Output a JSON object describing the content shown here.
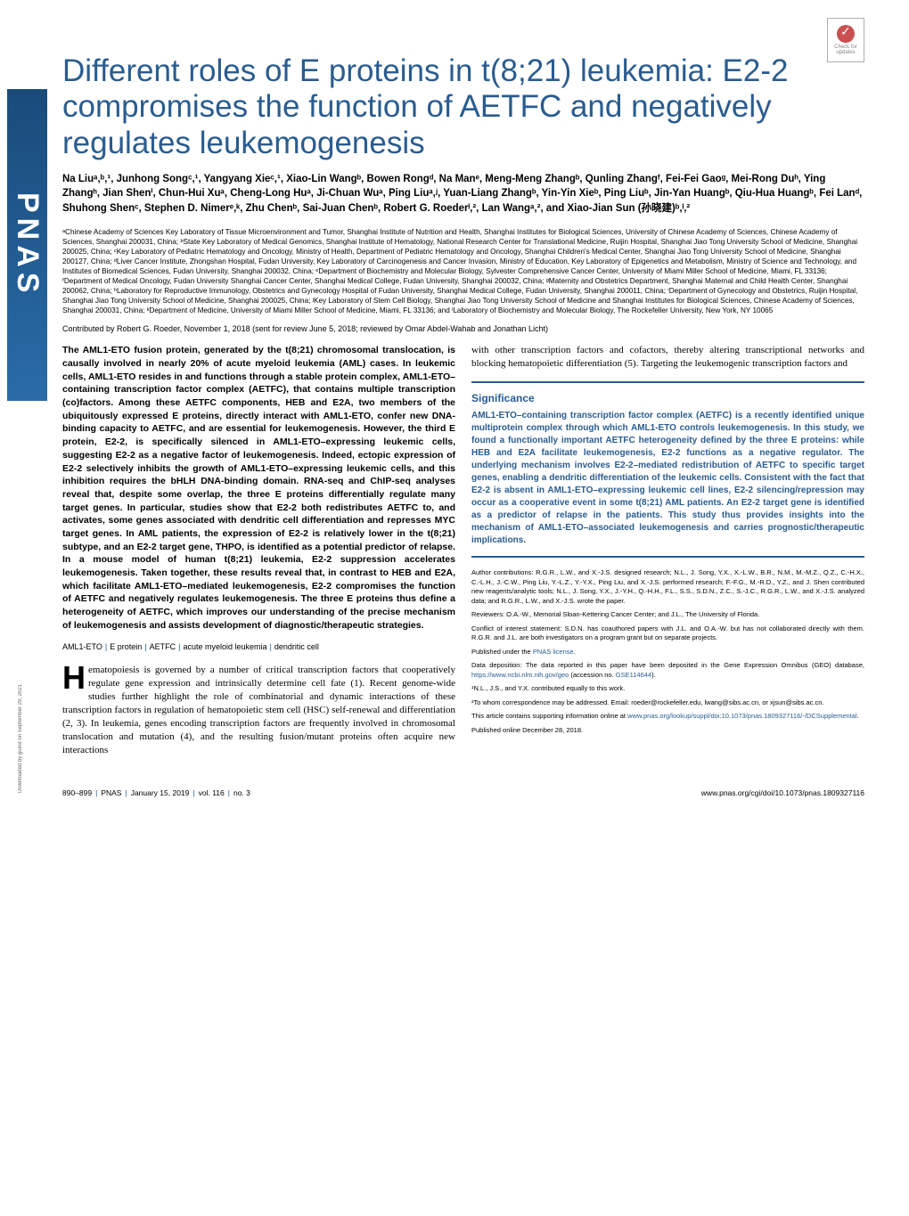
{
  "colors": {
    "accent": "#2a5c8f",
    "text": "#000000",
    "background": "#ffffff",
    "logo_grad_start": "#1a4b7a",
    "logo_grad_end": "#2a6ba8",
    "check_circle": "#c85050"
  },
  "typography": {
    "title_fontsize": 35,
    "author_fontsize": 11.5,
    "affil_fontsize": 8.2,
    "abstract_fontsize": 10.5,
    "body_fontsize": 11,
    "meta_fontsize": 7.5,
    "footer_fontsize": 8.5
  },
  "check_updates": {
    "line1": "Check for",
    "line2": "updates"
  },
  "side_logo": "PNAS",
  "title": "Different roles of E proteins in t(8;21) leukemia: E2-2 compromises the function of AETFC and negatively regulates leukemogenesis",
  "authors": "Na Liuᵃ,ᵇ,¹, Junhong Songᶜ,¹, Yangyang Xieᶜ,¹, Xiao-Lin Wangᵇ, Bowen Rongᵈ, Na Manᵉ, Meng-Meng Zhangᵇ, Qunling Zhangᶠ, Fei-Fei Gaoᵍ, Mei-Rong Duʰ, Ying Zhangʰ, Jian Shenⁱ, Chun-Hui Xuᵃ, Cheng-Long Huᵃ, Ji-Chuan Wuᵃ, Ping Liuᵃ,ʲ, Yuan-Liang Zhangᵇ, Yin-Yin Xieᵇ, Ping Liuᵇ, Jin-Yan Huangᵇ, Qiu-Hua Huangᵇ, Fei Lanᵈ, Shuhong Shenᶜ, Stephen D. Nimerᵉ,ᵏ, Zhu Chenᵇ, Sai-Juan Chenᵇ, Robert G. Roederˡ,², Lan Wangᵃ,², and Xiao-Jian Sun (孙晓建)ᵇ,ˡ,²",
  "affiliations": "ᵃChinese Academy of Sciences Key Laboratory of Tissue Microenvironment and Tumor, Shanghai Institute of Nutrition and Health, Shanghai Institutes for Biological Sciences, University of Chinese Academy of Sciences, Chinese Academy of Sciences, Shanghai 200031, China; ᵇState Key Laboratory of Medical Genomics, Shanghai Institute of Hematology, National Research Center for Translational Medicine, Ruijin Hospital, Shanghai Jiao Tong University School of Medicine, Shanghai 200025, China; ᶜKey Laboratory of Pediatric Hematology and Oncology, Ministry of Health, Department of Pediatric Hematology and Oncology, Shanghai Children's Medical Center, Shanghai Jiao Tong University School of Medicine, Shanghai 200127, China; ᵈLiver Cancer Institute, Zhongshan Hospital, Fudan University, Key Laboratory of Carcinogenesis and Cancer Invasion, Ministry of Education, Key Laboratory of Epigenetics and Metabolism, Ministry of Science and Technology, and Institutes of Biomedical Sciences, Fudan University, Shanghai 200032, China; ᵉDepartment of Biochemistry and Molecular Biology, Sylvester Comprehensive Cancer Center, University of Miami Miller School of Medicine, Miami, FL 33136; ᶠDepartment of Medical Oncology, Fudan University Shanghai Cancer Center, Shanghai Medical College, Fudan University, Shanghai 200032, China; ᵍMaternity and Obstetrics Department, Shanghai Maternal and Child Health Center, Shanghai 200062, China; ʰLaboratory for Reproductive Immunology, Obstetrics and Gynecology Hospital of Fudan University, Shanghai Medical College, Fudan University, Shanghai 200011, China; ⁱDepartment of Gynecology and Obstetrics, Ruijin Hospital, Shanghai Jiao Tong University School of Medicine, Shanghai 200025, China; ʲKey Laboratory of Stem Cell Biology, Shanghai Jiao Tong University School of Medicine and Shanghai Institutes for Biological Sciences, Chinese Academy of Sciences, Shanghai 200031, China; ᵏDepartment of Medicine, University of Miami Miller School of Medicine, Miami, FL 33136; and ˡLaboratory of Biochemistry and Molecular Biology, The Rockefeller University, New York, NY 10065",
  "contributed": "Contributed by Robert G. Roeder, November 1, 2018 (sent for review June 5, 2018; reviewed by Omar Abdel-Wahab and Jonathan Licht)",
  "abstract": "The AML1-ETO fusion protein, generated by the t(8;21) chromosomal translocation, is causally involved in nearly 20% of acute myeloid leukemia (AML) cases. In leukemic cells, AML1-ETO resides in and functions through a stable protein complex, AML1-ETO–containing transcription factor complex (AETFC), that contains multiple transcription (co)factors. Among these AETFC components, HEB and E2A, two members of the ubiquitously expressed E proteins, directly interact with AML1-ETO, confer new DNA-binding capacity to AETFC, and are essential for leukemogenesis. However, the third E protein, E2-2, is specifically silenced in AML1-ETO–expressing leukemic cells, suggesting E2-2 as a negative factor of leukemogenesis. Indeed, ectopic expression of E2-2 selectively inhibits the growth of AML1-ETO–expressing leukemic cells, and this inhibition requires the bHLH DNA-binding domain. RNA-seq and ChIP-seq analyses reveal that, despite some overlap, the three E proteins differentially regulate many target genes. In particular, studies show that E2-2 both redistributes AETFC to, and activates, some genes associated with dendritic cell differentiation and represses MYC target genes. In AML patients, the expression of E2-2 is relatively lower in the t(8;21) subtype, and an E2-2 target gene, THPO, is identified as a potential predictor of relapse. In a mouse model of human t(8;21) leukemia, E2-2 suppression accelerates leukemogenesis. Taken together, these results reveal that, in contrast to HEB and E2A, which facilitate AML1-ETO–mediated leukemogenesis, E2-2 compromises the function of AETFC and negatively regulates leukemogenesis. The three E proteins thus define a heterogeneity of AETFC, which improves our understanding of the precise mechanism of leukemogenesis and assists development of diagnostic/therapeutic strategies.",
  "keywords": [
    "AML1-ETO",
    "E protein",
    "AETFC",
    "acute myeloid leukemia",
    "dendritic cell"
  ],
  "body_col1": "ematopoiesis is governed by a number of critical transcription factors that cooperatively regulate gene expression and intrinsically determine cell fate (1). Recent genome-wide studies further highlight the role of combinatorial and dynamic interactions of these transcription factors in regulation of hematopoietic stem cell (HSC) self-renewal and differentiation (2, 3). In leukemia, genes encoding transcription factors are frequently involved in chromosomal translocation and mutation (4), and the resulting fusion/mutant proteins often acquire new interactions",
  "body_col2_top": "with other transcription factors and cofactors, thereby altering transcriptional networks and blocking hematopoietic differentiation (5). Targeting the leukemogenic transcription factors and",
  "significance": {
    "heading": "Significance",
    "text": "AML1-ETO–containing transcription factor complex (AETFC) is a recently identified unique multiprotein complex through which AML1-ETO controls leukemogenesis. In this study, we found a functionally important AETFC heterogeneity defined by the three E proteins: while HEB and E2A facilitate leukemogenesis, E2-2 functions as a negative regulator. The underlying mechanism involves E2-2–mediated redistribution of AETFC to specific target genes, enabling a dendritic differentiation of the leukemic cells. Consistent with the fact that E2-2 is absent in AML1-ETO–expressing leukemic cell lines, E2-2 silencing/repression may occur as a cooperative event in some t(8;21) AML patients. An E2-2 target gene is identified as a predictor of relapse in the patients. This study thus provides insights into the mechanism of AML1-ETO–associated leukemogenesis and carries prognostic/therapeutic implications."
  },
  "meta": {
    "contributions": "Author contributions: R.G.R., L.W., and X.-J.S. designed research; N.L., J. Song, Y.X., X.-L.W., B.R., N.M., M.-M.Z., Q.Z., C.-H.X., C.-L.H., J.-C.W., Ping Liu, Y.-L.Z., Y.-Y.X., Ping Liu, and X.-J.S. performed research; F.-F.G., M.-R.D., Y.Z., and J. Shen contributed new reagents/analytic tools; N.L., J. Song, Y.X., J.-Y.H., Q.-H.H., F.L., S.S., S.D.N., Z.C., S.-J.C., R.G.R., L.W., and X.-J.S. analyzed data; and R.G.R., L.W., and X.-J.S. wrote the paper.",
    "reviewers": "Reviewers: O.A.-W., Memorial Sloan-Kettering Cancer Center; and J.L., The University of Florida.",
    "conflict": "Conflict of interest statement: S.D.N. has coauthored papers with J.L. and O.A.-W. but has not collaborated directly with them. R.G.R. and J.L. are both investigators on a program grant but on separate projects.",
    "license_prefix": "Published under the ",
    "license_link": "PNAS license",
    "license_suffix": ".",
    "data_prefix": "Data deposition: The data reported in this paper have been deposited in the Gene Expression Omnibus (GEO) database, ",
    "data_link1": "https://www.ncbi.nlm.nih.gov/geo",
    "data_mid": " (accession no. ",
    "data_link2": "GSE114644",
    "data_suffix": ").",
    "note1": "¹N.L., J.S., and Y.X. contributed equally to this work.",
    "note2": "²To whom correspondence may be addressed. Email: roeder@rockefeller.edu, lwang@sibs.ac.cn, or xjsun@sibs.ac.cn.",
    "supp_prefix": "This article contains supporting information online at ",
    "supp_link": "www.pnas.org/lookup/suppl/doi:10.1073/pnas.1809327116/-/DCSupplemental",
    "supp_suffix": ".",
    "pub_online": "Published online December 28, 2018."
  },
  "footer": {
    "pages": "890–899",
    "journal": "PNAS",
    "date": "January 15, 2019",
    "vol": "vol. 116",
    "no": "no. 3",
    "doi": "www.pnas.org/cgi/doi/10.1073/pnas.1809327116"
  },
  "download_note": "Downloaded by guest on September 29, 2021"
}
